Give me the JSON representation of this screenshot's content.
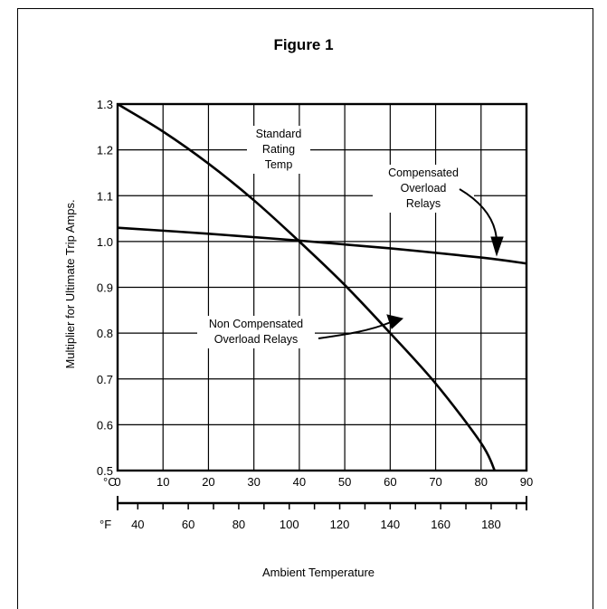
{
  "figure": {
    "title": "Figure 1"
  },
  "chart_data": {
    "type": "line",
    "title": "Figure 1",
    "xlabel": "Ambient Temperature",
    "ylabel": "Multiplier for Ultimate Trip Amps.",
    "xlim": [
      0,
      90
    ],
    "ylim": [
      0.5,
      1.3
    ],
    "grid": true,
    "x_unit_label": "°C",
    "x_ticks": [
      "0",
      "10",
      "20",
      "30",
      "40",
      "50",
      "60",
      "70",
      "80",
      "90"
    ],
    "y_ticks": [
      "0.5",
      "0.6",
      "0.7",
      "0.8",
      "0.9",
      "1.0",
      "1.1",
      "1.2",
      "1.3"
    ],
    "secondary_x_axis": {
      "unit_label": "°F",
      "ticks": [
        {
          "value": 40,
          "label": "40"
        },
        {
          "value": 60,
          "label": "60"
        },
        {
          "value": 80,
          "label": "80"
        },
        {
          "value": 100,
          "label": "100"
        },
        {
          "value": 120,
          "label": "120"
        },
        {
          "value": 140,
          "label": "140"
        },
        {
          "value": 160,
          "label": "160"
        },
        {
          "value": 180,
          "label": "180"
        }
      ]
    },
    "series": [
      {
        "name": "Non Compensated Overload Relays",
        "x": [
          0,
          10,
          20,
          30,
          40,
          50,
          60,
          70,
          80,
          83
        ],
        "y": [
          1.3,
          1.24,
          1.17,
          1.09,
          1.0,
          0.905,
          0.8,
          0.69,
          0.56,
          0.5
        ]
      },
      {
        "name": "Compensated Overload Relays",
        "x": [
          0,
          20,
          40,
          60,
          80,
          90
        ],
        "y": [
          1.03,
          1.017,
          1.002,
          0.985,
          0.965,
          0.952
        ]
      }
    ],
    "annotations": [
      {
        "id": "standard",
        "lines": [
          "Standard",
          "Rating",
          "Temp"
        ]
      },
      {
        "id": "comp",
        "lines": [
          "Compensated",
          "Overload",
          "Relays"
        ]
      },
      {
        "id": "noncomp",
        "lines": [
          "Non Compensated",
          "Overload Relays"
        ]
      }
    ]
  }
}
